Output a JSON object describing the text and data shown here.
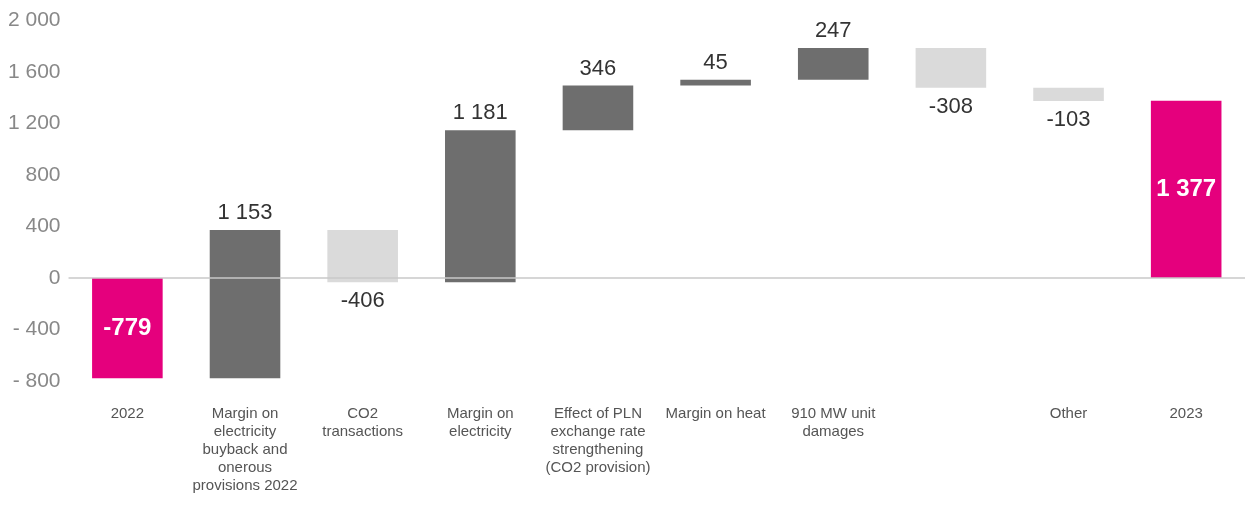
{
  "chart_data": {
    "type": "bar",
    "categories": [
      "2022",
      "Margin on electricity buyback and onerous provisions 2022",
      "CO2 transactions",
      "Margin on electricity",
      "Effect of PLN exchange rate strengthening (CO2 provision)",
      "Margin on heat",
      "910 MW unit damages",
      null,
      "Other",
      "2023"
    ],
    "values": [
      -779,
      1153,
      -406,
      1181,
      346,
      45,
      247,
      -308,
      -103,
      1377
    ],
    "base": [
      0,
      -779,
      374,
      -32,
      1149,
      1495,
      1540,
      1787,
      1479,
      0
    ],
    "colors": [
      "#e5007d",
      "#6e6e6e",
      "#dadada",
      "#6e6e6e",
      "#6e6e6e",
      "#6e6e6e",
      "#6e6e6e",
      "#dadada",
      "#dadada",
      "#e5007d"
    ],
    "value_labels": [
      "-779",
      "1 153",
      "-406",
      "1 181",
      "346",
      "45",
      "247",
      "-308",
      "-103",
      "1 377"
    ],
    "ylim": [
      -800,
      2000
    ],
    "yticks": [
      {
        "value": -800,
        "label": "- 800"
      },
      {
        "value": -400,
        "label": "- 400"
      },
      0,
      400,
      800,
      {
        "value": 1200,
        "label": "1 200"
      },
      {
        "value": 1600,
        "label": "1 600"
      },
      {
        "value": 2000,
        "label": "2 000"
      }
    ],
    "ref_lines": [
      {
        "axis": "y",
        "value": 0,
        "color": "#c8c8c8"
      }
    ],
    "grid": false,
    "legend": false
  }
}
